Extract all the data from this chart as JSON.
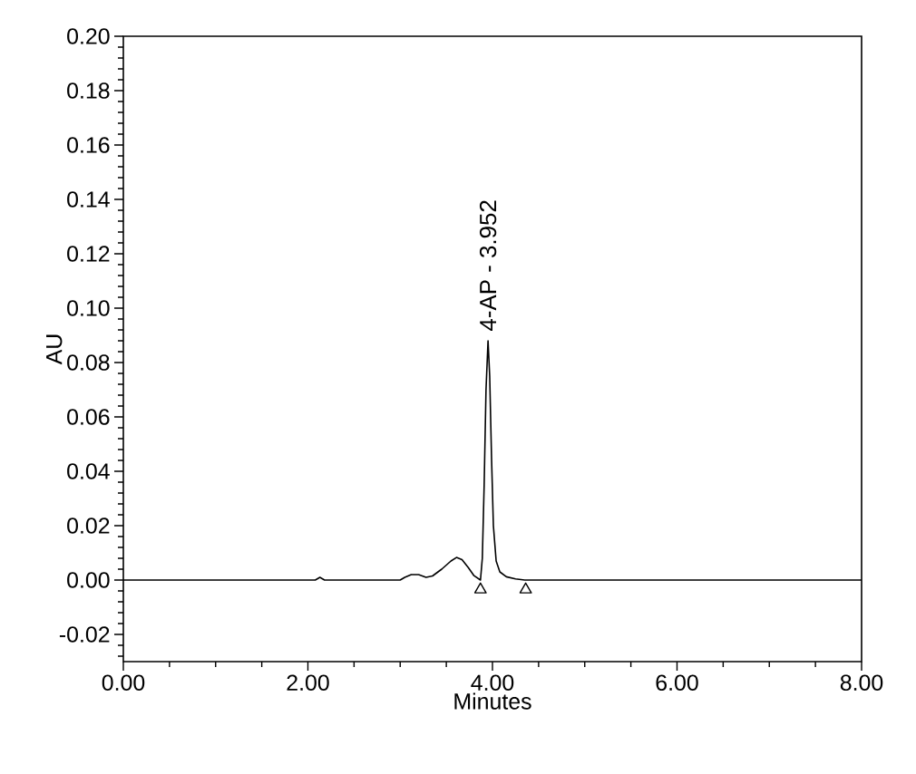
{
  "chart_data": {
    "type": "line",
    "xlabel": "Minutes",
    "ylabel": "AU",
    "xlim": [
      0,
      8
    ],
    "ylim": [
      -0.03,
      0.2
    ],
    "xticks": [
      {
        "value": 0,
        "label": "0.00"
      },
      {
        "value": 0.5,
        "label": null
      },
      {
        "value": 1,
        "label": null
      },
      {
        "value": 1.5,
        "label": null
      },
      {
        "value": 2,
        "label": "2.00"
      },
      {
        "value": 2.5,
        "label": null
      },
      {
        "value": 3,
        "label": null
      },
      {
        "value": 3.5,
        "label": null
      },
      {
        "value": 4,
        "label": "4.00"
      },
      {
        "value": 4.5,
        "label": null
      },
      {
        "value": 5,
        "label": null
      },
      {
        "value": 5.5,
        "label": null
      },
      {
        "value": 6,
        "label": "6.00"
      },
      {
        "value": 6.5,
        "label": null
      },
      {
        "value": 7,
        "label": null
      },
      {
        "value": 7.5,
        "label": null
      },
      {
        "value": 8,
        "label": "8.00"
      }
    ],
    "yticks": [
      {
        "value": -0.028,
        "label": null
      },
      {
        "value": -0.024,
        "label": null
      },
      {
        "value": -0.02,
        "label": "-0.02"
      },
      {
        "value": -0.016,
        "label": null
      },
      {
        "value": -0.012,
        "label": null
      },
      {
        "value": -0.008,
        "label": null
      },
      {
        "value": -0.004,
        "label": null
      },
      {
        "value": 0,
        "label": "0.00"
      },
      {
        "value": 0.004,
        "label": null
      },
      {
        "value": 0.008,
        "label": null
      },
      {
        "value": 0.012,
        "label": null
      },
      {
        "value": 0.016,
        "label": null
      },
      {
        "value": 0.02,
        "label": "0.02"
      },
      {
        "value": 0.024,
        "label": null
      },
      {
        "value": 0.028,
        "label": null
      },
      {
        "value": 0.032,
        "label": null
      },
      {
        "value": 0.036,
        "label": null
      },
      {
        "value": 0.04,
        "label": "0.04"
      },
      {
        "value": 0.044,
        "label": null
      },
      {
        "value": 0.048,
        "label": null
      },
      {
        "value": 0.052,
        "label": null
      },
      {
        "value": 0.056,
        "label": null
      },
      {
        "value": 0.06,
        "label": "0.06"
      },
      {
        "value": 0.064,
        "label": null
      },
      {
        "value": 0.068,
        "label": null
      },
      {
        "value": 0.072,
        "label": null
      },
      {
        "value": 0.076,
        "label": null
      },
      {
        "value": 0.08,
        "label": "0.08"
      },
      {
        "value": 0.084,
        "label": null
      },
      {
        "value": 0.088,
        "label": null
      },
      {
        "value": 0.092,
        "label": null
      },
      {
        "value": 0.096,
        "label": null
      },
      {
        "value": 0.1,
        "label": "0.10"
      },
      {
        "value": 0.104,
        "label": null
      },
      {
        "value": 0.108,
        "label": null
      },
      {
        "value": 0.112,
        "label": null
      },
      {
        "value": 0.116,
        "label": null
      },
      {
        "value": 0.12,
        "label": "0.12"
      },
      {
        "value": 0.124,
        "label": null
      },
      {
        "value": 0.128,
        "label": null
      },
      {
        "value": 0.132,
        "label": null
      },
      {
        "value": 0.136,
        "label": null
      },
      {
        "value": 0.14,
        "label": "0.14"
      },
      {
        "value": 0.144,
        "label": null
      },
      {
        "value": 0.148,
        "label": null
      },
      {
        "value": 0.152,
        "label": null
      },
      {
        "value": 0.156,
        "label": null
      },
      {
        "value": 0.16,
        "label": "0.16"
      },
      {
        "value": 0.164,
        "label": null
      },
      {
        "value": 0.168,
        "label": null
      },
      {
        "value": 0.172,
        "label": null
      },
      {
        "value": 0.176,
        "label": null
      },
      {
        "value": 0.18,
        "label": "0.18"
      },
      {
        "value": 0.184,
        "label": null
      },
      {
        "value": 0.188,
        "label": null
      },
      {
        "value": 0.192,
        "label": null
      },
      {
        "value": 0.196,
        "label": null
      },
      {
        "value": 0.2,
        "label": "0.20"
      }
    ],
    "series": [
      {
        "color": "#000000",
        "line_style": "solid",
        "x": [
          0,
          2.08,
          2.13,
          2.18,
          3.0,
          3.05,
          3.12,
          3.2,
          3.28,
          3.35,
          3.45,
          3.55,
          3.61,
          3.67,
          3.74,
          3.8,
          3.87,
          3.89,
          3.91,
          3.93,
          3.952,
          3.97,
          3.99,
          4.01,
          4.04,
          4.08,
          4.15,
          4.25,
          4.35,
          8.0
        ],
        "values": [
          0,
          0,
          0.001,
          0,
          0,
          0.001,
          0.002,
          0.002,
          0.001,
          0.0015,
          0.004,
          0.007,
          0.0083,
          0.0075,
          0.0045,
          0.0016,
          0,
          0.008,
          0.035,
          0.07,
          0.088,
          0.075,
          0.045,
          0.02,
          0.007,
          0.003,
          0.0012,
          0.0004,
          0,
          0
        ]
      },
      {
        "type": "scatter",
        "color": "#000000",
        "marker": "triangle",
        "x": [
          3.87,
          4.36
        ],
        "values": [
          -0.0035,
          -0.0035
        ]
      }
    ],
    "annotations": [
      {
        "text": "4-AP - 3.952",
        "x": 3.952,
        "y": 0.088
      }
    ]
  }
}
